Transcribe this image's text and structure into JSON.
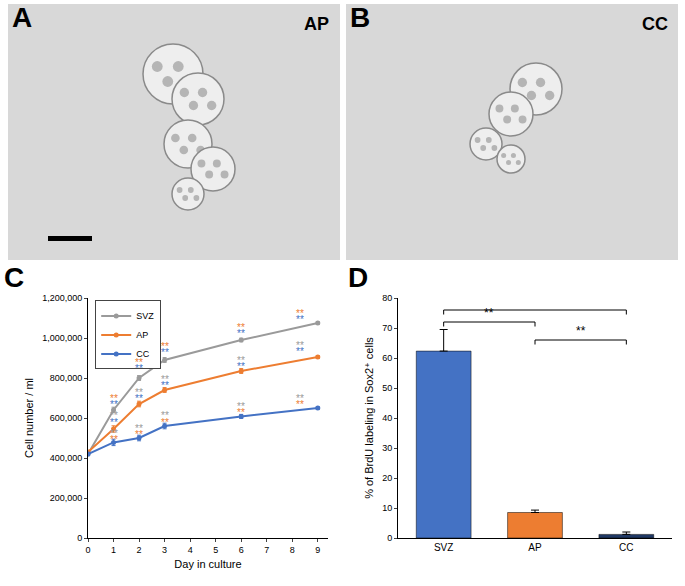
{
  "images": [
    {
      "panel_label": "A",
      "label": "AP"
    },
    {
      "panel_label": "B",
      "label": "CC"
    }
  ],
  "chart_data": [
    {
      "panel_label": "C",
      "type": "line",
      "x_label": "Day in culture",
      "y_label": "Cell number / ml",
      "x": [
        0,
        1,
        2,
        3,
        6,
        9
      ],
      "series": [
        {
          "name": "SVZ",
          "color": "#9a9a9a",
          "marker": "circle",
          "values": [
            420000,
            640000,
            800000,
            890000,
            990000,
            1075000
          ],
          "errors": [
            8000,
            14000,
            12000,
            12000,
            9000,
            6000
          ]
        },
        {
          "name": "AP",
          "color": "#ed7d31",
          "marker": "circle",
          "values": [
            430000,
            545000,
            670000,
            740000,
            835000,
            905000
          ],
          "errors": [
            8000,
            16000,
            14000,
            12000,
            12000,
            7000
          ]
        },
        {
          "name": "CC",
          "color": "#4472c4",
          "marker": "circle",
          "values": [
            420000,
            478000,
            500000,
            560000,
            608000,
            650000
          ],
          "errors": [
            8000,
            16000,
            14000,
            14000,
            10000,
            6000
          ]
        }
      ],
      "xlim": [
        0,
        9.4
      ],
      "xticks": [
        0,
        1,
        2,
        3,
        4,
        5,
        6,
        7,
        8,
        9
      ],
      "ylim": [
        0,
        1200000
      ],
      "yticks": [
        0,
        {
          "value": 200000,
          "label": "200,000"
        },
        {
          "value": 400000,
          "label": "400,000"
        },
        {
          "value": 600000,
          "label": "600,000"
        },
        {
          "value": 800000,
          "label": "800,000"
        },
        {
          "value": 1000000,
          "label": "1,000,000"
        },
        {
          "value": 1200000,
          "label": "1,200,000"
        }
      ],
      "grid": false,
      "legend": "upper left",
      "annotations": [
        {
          "x": 1,
          "y": 700000,
          "text": "**",
          "color": "#ed7d31"
        },
        {
          "x": 1,
          "y": 668000,
          "text": "**",
          "color": "#4472c4"
        },
        {
          "x": 1,
          "y": 612000,
          "text": "**",
          "color": "#9a9a9a"
        },
        {
          "x": 1,
          "y": 580000,
          "text": "**",
          "color": "#4472c4"
        },
        {
          "x": 1,
          "y": 525000,
          "text": "**",
          "color": "#9a9a9a"
        },
        {
          "x": 1,
          "y": 493000,
          "text": "**",
          "color": "#ed7d31"
        },
        {
          "x": 2,
          "y": 880000,
          "text": "**",
          "color": "#ed7d31"
        },
        {
          "x": 2,
          "y": 848000,
          "text": "**",
          "color": "#4472c4"
        },
        {
          "x": 2,
          "y": 728000,
          "text": "**",
          "color": "#9a9a9a"
        },
        {
          "x": 2,
          "y": 696000,
          "text": "**",
          "color": "#4472c4"
        },
        {
          "x": 2,
          "y": 550000,
          "text": "**",
          "color": "#9a9a9a"
        },
        {
          "x": 2,
          "y": 518000,
          "text": "**",
          "color": "#ed7d31"
        },
        {
          "x": 3,
          "y": 960000,
          "text": "**",
          "color": "#ed7d31"
        },
        {
          "x": 3,
          "y": 928000,
          "text": "**",
          "color": "#4472c4"
        },
        {
          "x": 3,
          "y": 795000,
          "text": "**",
          "color": "#9a9a9a"
        },
        {
          "x": 3,
          "y": 763000,
          "text": "**",
          "color": "#4472c4"
        },
        {
          "x": 3,
          "y": 612000,
          "text": "**",
          "color": "#9a9a9a"
        },
        {
          "x": 3,
          "y": 580000,
          "text": "**",
          "color": "#ed7d31"
        },
        {
          "x": 6,
          "y": 1055000,
          "text": "**",
          "color": "#ed7d31"
        },
        {
          "x": 6,
          "y": 1023000,
          "text": "**",
          "color": "#4472c4"
        },
        {
          "x": 6,
          "y": 890000,
          "text": "**",
          "color": "#9a9a9a"
        },
        {
          "x": 6,
          "y": 858000,
          "text": "**",
          "color": "#4472c4"
        },
        {
          "x": 6,
          "y": 660000,
          "text": "**",
          "color": "#9a9a9a"
        },
        {
          "x": 6,
          "y": 628000,
          "text": "**",
          "color": "#ed7d31"
        },
        {
          "x": 8.3,
          "y": 1125000,
          "text": "**",
          "color": "#ed7d31"
        },
        {
          "x": 8.3,
          "y": 1093000,
          "text": "**",
          "color": "#4472c4"
        },
        {
          "x": 8.3,
          "y": 965000,
          "text": "**",
          "color": "#9a9a9a"
        },
        {
          "x": 8.3,
          "y": 933000,
          "text": "**",
          "color": "#4472c4"
        },
        {
          "x": 8.3,
          "y": 700000,
          "text": "**",
          "color": "#9a9a9a"
        },
        {
          "x": 8.3,
          "y": 668000,
          "text": "**",
          "color": "#ed7d31"
        }
      ]
    },
    {
      "panel_label": "D",
      "type": "bar",
      "y_label": "% of BrdU labeling in Sox2⁺ cells",
      "categories": [
        "SVZ",
        "AP",
        "CC"
      ],
      "values": [
        62.3,
        8.5,
        1.2
      ],
      "errors": [
        7.2,
        0.8,
        0.8
      ],
      "colors": [
        "#4472c4",
        "#ed7d31",
        "#1f3864"
      ],
      "ylim": [
        0,
        80
      ],
      "yticks": [
        0,
        10,
        20,
        30,
        40,
        50,
        60,
        70,
        80
      ],
      "grid": false,
      "comparisons": [
        {
          "from": "SVZ",
          "to": "CC",
          "y": 76
        },
        {
          "from": "SVZ",
          "to": "AP",
          "y": 72,
          "text": "**"
        },
        {
          "from": "AP",
          "to": "CC",
          "y": 66,
          "text": "**"
        }
      ]
    }
  ]
}
